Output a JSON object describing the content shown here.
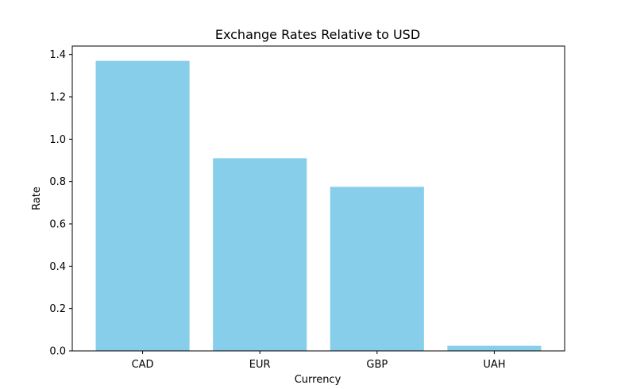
{
  "chart_data": {
    "type": "bar",
    "title": "Exchange Rates Relative to USD",
    "xlabel": "Currency",
    "ylabel": "Rate",
    "categories": [
      "CAD",
      "EUR",
      "GBP",
      "UAH"
    ],
    "values": [
      1.37,
      0.91,
      0.775,
      0.024
    ],
    "ylim": [
      0,
      1.44
    ],
    "yticks": [
      0.0,
      0.2,
      0.4,
      0.6,
      0.8,
      1.0,
      1.2,
      1.4
    ],
    "ytick_labels": [
      "0.0",
      "0.2",
      "0.4",
      "0.6",
      "0.8",
      "1.0",
      "1.2",
      "1.4"
    ],
    "bar_color": "#87ceeb",
    "grid": false,
    "legend": "none"
  }
}
